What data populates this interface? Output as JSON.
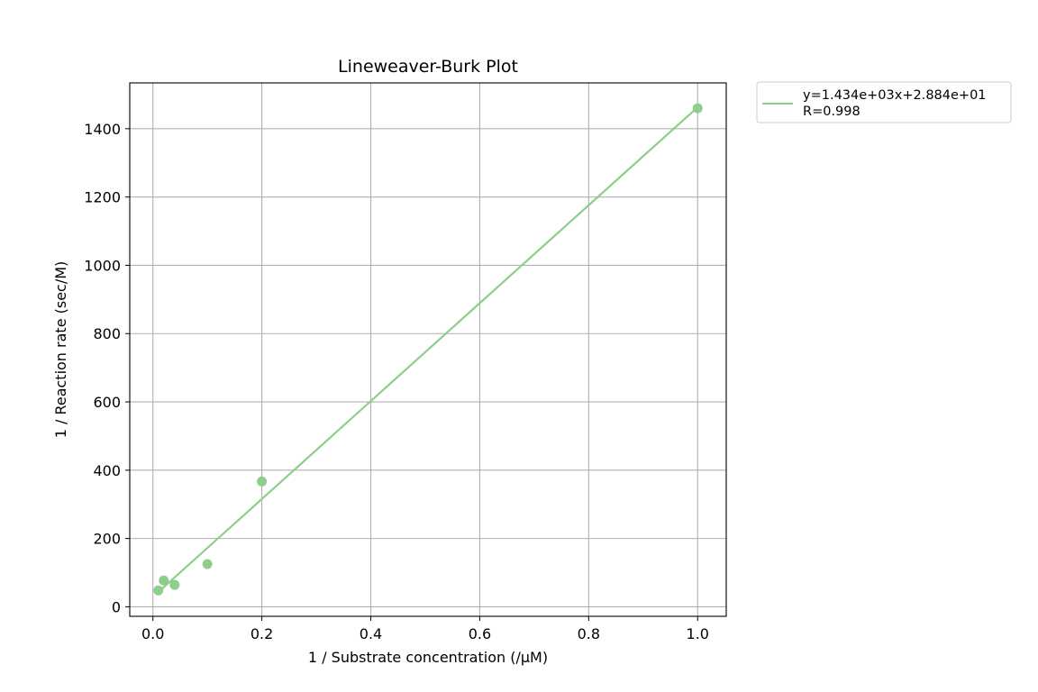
{
  "chart_data": {
    "type": "scatter",
    "title": "Lineweaver-Burk Plot",
    "xlabel": "1 / Substrate concentration (/µM)",
    "ylabel": "1 / Reaction rate (sec/M)",
    "xlim": [
      -0.0425,
      1.0525
    ],
    "ylim": [
      -27.9,
      1534.2
    ],
    "x_ticks": [
      0.0,
      0.2,
      0.4,
      0.6,
      0.8,
      1.0
    ],
    "x_tick_labels": [
      "0.0",
      "0.2",
      "0.4",
      "0.6",
      "0.8",
      "1.0"
    ],
    "y_ticks": [
      0,
      200,
      400,
      600,
      800,
      1000,
      1200,
      1400
    ],
    "y_tick_labels": [
      "0",
      "200",
      "400",
      "600",
      "800",
      "1000",
      "1200",
      "1400"
    ],
    "grid": true,
    "legend_position": "outside-top-right",
    "color": "#8dcf8a",
    "points": {
      "x": [
        0.01,
        0.02,
        0.04,
        0.1,
        0.2,
        1.0
      ],
      "y": [
        48,
        77,
        64,
        125,
        367,
        1460
      ]
    },
    "fit_line": {
      "slope": 1434,
      "intercept": 28.84,
      "x_range": [
        0.01,
        1.0
      ]
    },
    "legend_entries": [
      "y=1.434e+03x+2.884e+01",
      "R=0.998"
    ]
  }
}
